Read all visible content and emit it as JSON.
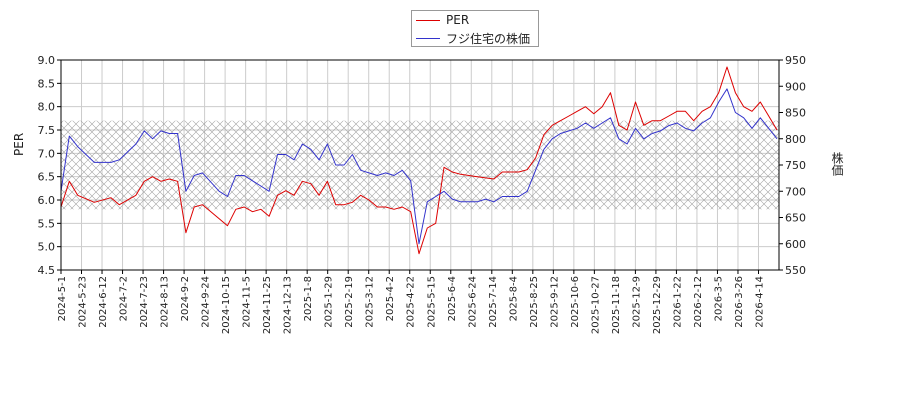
{
  "chart_data": {
    "type": "line",
    "xlabel": "",
    "ylabel_left": "PER",
    "ylabel_right": "株価",
    "ylim_left": [
      4.5,
      9.0
    ],
    "ylim_right": [
      550,
      950
    ],
    "yticks_left": [
      "4.5",
      "5.0",
      "5.5",
      "6.0",
      "6.5",
      "7.0",
      "7.5",
      "8.0",
      "8.5",
      "9.0"
    ],
    "yticks_right": [
      "550",
      "600",
      "650",
      "700",
      "750",
      "800",
      "850",
      "900",
      "950"
    ],
    "xticks": [
      "2024-5-1",
      "2024-5-23",
      "2024-6-12",
      "2024-7-2",
      "2024-7-23",
      "2024-8-13",
      "2024-9-2",
      "2024-9-24",
      "2024-10-15",
      "2024-11-5",
      "2024-11-25",
      "2024-12-13",
      "2025-1-8",
      "2025-1-29",
      "2025-2-19",
      "2025-3-12",
      "2025-4-2",
      "2025-4-22",
      "2025-5-15",
      "2025-6-4",
      "2025-6-24",
      "2025-7-14",
      "2025-8-4",
      "2025-8-25",
      "2025-9-12",
      "2025-10-6",
      "2025-10-27",
      "2025-11-18",
      "2025-12-9",
      "2025-12-29",
      "2026-1-22",
      "2026-2-12",
      "2026-3-5",
      "2026-3-26",
      "2026-4-14"
    ],
    "band": {
      "left_range": [
        5.8,
        7.7
      ]
    },
    "legend_position": "top-center",
    "grid": true,
    "series": [
      {
        "name": "PER",
        "color": "#dd0000",
        "axis": "left",
        "points": [
          [
            0,
            5.85
          ],
          [
            1,
            6.4
          ],
          [
            2,
            6.1
          ],
          [
            4,
            5.95
          ],
          [
            6,
            6.05
          ],
          [
            7,
            5.9
          ],
          [
            9,
            6.1
          ],
          [
            10,
            6.4
          ],
          [
            11,
            6.5
          ],
          [
            12,
            6.4
          ],
          [
            13,
            6.45
          ],
          [
            14,
            6.4
          ],
          [
            15,
            5.3
          ],
          [
            16,
            5.85
          ],
          [
            17,
            5.9
          ],
          [
            19,
            5.6
          ],
          [
            20,
            5.45
          ],
          [
            21,
            5.8
          ],
          [
            22,
            5.85
          ],
          [
            23,
            5.75
          ],
          [
            24,
            5.8
          ],
          [
            25,
            5.65
          ],
          [
            26,
            6.1
          ],
          [
            27,
            6.2
          ],
          [
            28,
            6.1
          ],
          [
            29,
            6.4
          ],
          [
            30,
            6.35
          ],
          [
            31,
            6.1
          ],
          [
            32,
            6.4
          ],
          [
            33,
            5.9
          ],
          [
            34,
            5.9
          ],
          [
            35,
            5.95
          ],
          [
            36,
            6.1
          ],
          [
            37,
            6.0
          ],
          [
            38,
            5.85
          ],
          [
            39,
            5.85
          ],
          [
            40,
            5.8
          ],
          [
            41,
            5.85
          ],
          [
            42,
            5.75
          ],
          [
            43,
            4.85
          ],
          [
            44,
            5.4
          ],
          [
            45,
            5.5
          ],
          [
            46,
            6.7
          ],
          [
            47,
            6.6
          ],
          [
            48,
            6.55
          ],
          [
            50,
            6.5
          ],
          [
            52,
            6.45
          ],
          [
            53,
            6.6
          ],
          [
            55,
            6.6
          ],
          [
            56,
            6.65
          ],
          [
            57,
            6.9
          ],
          [
            58,
            7.4
          ],
          [
            59,
            7.6
          ],
          [
            60,
            7.7
          ],
          [
            61,
            7.8
          ],
          [
            62,
            7.9
          ],
          [
            63,
            8.0
          ],
          [
            64,
            7.85
          ],
          [
            65,
            8.0
          ],
          [
            66,
            8.3
          ],
          [
            67,
            7.6
          ],
          [
            68,
            7.5
          ],
          [
            69,
            8.1
          ],
          [
            70,
            7.6
          ],
          [
            71,
            7.7
          ],
          [
            72,
            7.7
          ],
          [
            73,
            7.8
          ],
          [
            74,
            7.9
          ],
          [
            75,
            7.9
          ],
          [
            76,
            7.7
          ],
          [
            77,
            7.9
          ],
          [
            78,
            8.0
          ],
          [
            79,
            8.3
          ],
          [
            80,
            8.85
          ],
          [
            81,
            8.3
          ],
          [
            82,
            8.0
          ],
          [
            83,
            7.9
          ],
          [
            84,
            8.1
          ],
          [
            85,
            7.8
          ],
          [
            86,
            7.5
          ]
        ]
      },
      {
        "name": "フジ住宅の株価",
        "color": "#3333cc",
        "axis": "right",
        "points": [
          [
            0,
            700
          ],
          [
            1,
            805
          ],
          [
            2,
            785
          ],
          [
            3,
            770
          ],
          [
            4,
            755
          ],
          [
            6,
            755
          ],
          [
            7,
            760
          ],
          [
            9,
            790
          ],
          [
            10,
            815
          ],
          [
            11,
            800
          ],
          [
            12,
            815
          ],
          [
            13,
            810
          ],
          [
            14,
            810
          ],
          [
            15,
            700
          ],
          [
            16,
            730
          ],
          [
            17,
            735
          ],
          [
            19,
            700
          ],
          [
            20,
            690
          ],
          [
            21,
            730
          ],
          [
            22,
            730
          ],
          [
            23,
            720
          ],
          [
            24,
            710
          ],
          [
            25,
            700
          ],
          [
            26,
            770
          ],
          [
            27,
            770
          ],
          [
            28,
            760
          ],
          [
            29,
            790
          ],
          [
            30,
            780
          ],
          [
            31,
            760
          ],
          [
            32,
            790
          ],
          [
            33,
            750
          ],
          [
            34,
            750
          ],
          [
            35,
            770
          ],
          [
            36,
            740
          ],
          [
            37,
            735
          ],
          [
            38,
            730
          ],
          [
            39,
            735
          ],
          [
            40,
            730
          ],
          [
            41,
            740
          ],
          [
            42,
            720
          ],
          [
            43,
            600
          ],
          [
            44,
            680
          ],
          [
            45,
            690
          ],
          [
            46,
            700
          ],
          [
            47,
            685
          ],
          [
            48,
            680
          ],
          [
            50,
            680
          ],
          [
            51,
            685
          ],
          [
            52,
            680
          ],
          [
            53,
            690
          ],
          [
            55,
            690
          ],
          [
            56,
            700
          ],
          [
            57,
            740
          ],
          [
            58,
            780
          ],
          [
            59,
            800
          ],
          [
            60,
            810
          ],
          [
            61,
            815
          ],
          [
            62,
            820
          ],
          [
            63,
            830
          ],
          [
            64,
            820
          ],
          [
            65,
            830
          ],
          [
            66,
            840
          ],
          [
            67,
            800
          ],
          [
            68,
            790
          ],
          [
            69,
            820
          ],
          [
            70,
            800
          ],
          [
            71,
            810
          ],
          [
            72,
            815
          ],
          [
            73,
            825
          ],
          [
            74,
            830
          ],
          [
            75,
            820
          ],
          [
            76,
            815
          ],
          [
            77,
            830
          ],
          [
            78,
            840
          ],
          [
            79,
            870
          ],
          [
            80,
            895
          ],
          [
            81,
            850
          ],
          [
            82,
            840
          ],
          [
            83,
            820
          ],
          [
            84,
            840
          ],
          [
            85,
            820
          ],
          [
            86,
            800
          ]
        ]
      }
    ]
  }
}
